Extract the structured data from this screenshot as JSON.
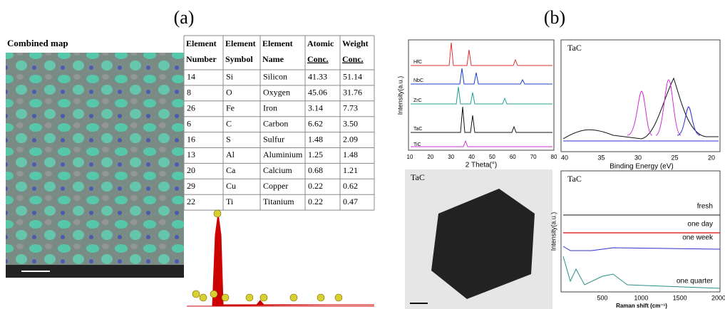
{
  "panel_a": {
    "label": "(a)",
    "map_title": "Combined map",
    "table": {
      "header": [
        [
          "Element",
          "Number"
        ],
        [
          "Element",
          "Symbol"
        ],
        [
          "Element",
          "Name"
        ],
        [
          "Atomic",
          "Conc."
        ],
        [
          "Weight",
          "Conc."
        ]
      ],
      "rows": [
        [
          "14",
          "Si",
          "Silicon",
          "41.33",
          "51.14"
        ],
        [
          "8",
          "O",
          "Oxygen",
          "45.06",
          "31.76"
        ],
        [
          "26",
          "Fe",
          "Iron",
          "3.14",
          "7.73"
        ],
        [
          "6",
          "C",
          "Carbon",
          "6.62",
          "3.50"
        ],
        [
          "16",
          "S",
          "Sulfur",
          "1.48",
          "2.09"
        ],
        [
          "13",
          "Al",
          "Aluminium",
          "1.25",
          "1.48"
        ],
        [
          "20",
          "Ca",
          "Calcium",
          "0.68",
          "1.21"
        ],
        [
          "29",
          "Cu",
          "Copper",
          "0.22",
          "0.62"
        ],
        [
          "22",
          "Ti",
          "Titanium",
          "0.22",
          "0.47"
        ]
      ]
    }
  },
  "panel_b": {
    "label": "(b)",
    "xrd": {
      "series_labels": [
        "HfC",
        "NbC",
        "ZrC",
        "TaC",
        "TiC"
      ],
      "y_label": "Intensity(a.u.)",
      "x_label": "2 Theta(°)",
      "x_ticks": [
        "10",
        "20",
        "30",
        "40",
        "50",
        "60",
        "70",
        "80"
      ]
    },
    "xps": {
      "title": "TaC",
      "x_label": "Binding Energy (eV)",
      "x_ticks": [
        "40",
        "35",
        "30",
        "25",
        "20"
      ]
    },
    "tem": {
      "title": "TaC"
    },
    "raman": {
      "title": "TaC",
      "curve_labels": [
        "fresh",
        "one day",
        "one week",
        "one quarter"
      ],
      "y_label": "Intensity(a.u.)",
      "x_label": "Raman shift (cm⁻¹)",
      "x_ticks": [
        "500",
        "1000",
        "1500",
        "2000"
      ]
    }
  }
}
